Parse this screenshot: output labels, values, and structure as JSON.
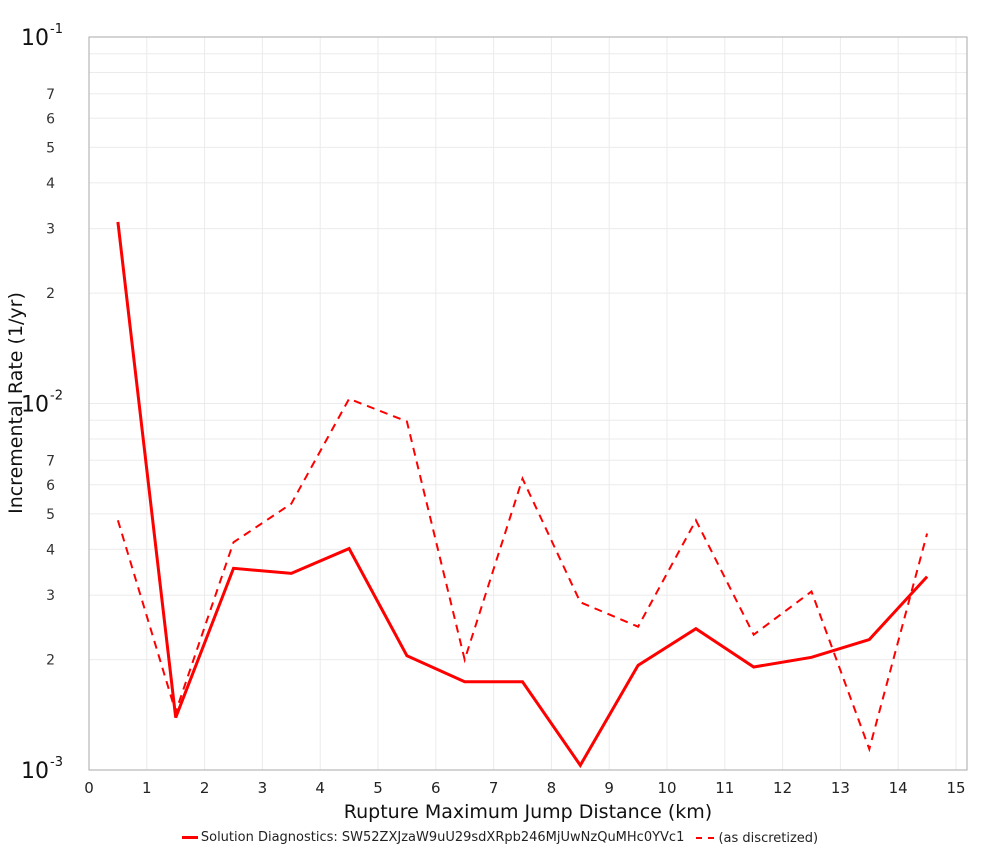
{
  "chart_data": {
    "type": "line",
    "title": "",
    "xlabel": "Rupture Maximum Jump Distance (km)",
    "ylabel": "Incremental Rate (1/yr)",
    "xlim": [
      0,
      15.2
    ],
    "ylim": [
      0.001,
      0.1
    ],
    "yscale": "log",
    "grid": true,
    "legend_position": "bottom",
    "x_ticks": [
      "0",
      "1",
      "2",
      "3",
      "4",
      "5",
      "6",
      "7",
      "8",
      "9",
      "10",
      "11",
      "12",
      "13",
      "14",
      "15"
    ],
    "y_major_ticks": [
      {
        "base": "10",
        "exp": "-1",
        "value": 0.1
      },
      {
        "base": "10",
        "exp": "-2",
        "value": 0.01
      },
      {
        "base": "10",
        "exp": "-3",
        "value": 0.001
      }
    ],
    "y_minor_tick_labels": [
      "2",
      "3",
      "4",
      "5",
      "6",
      "7"
    ],
    "x": [
      0.5,
      1.5,
      2.5,
      3.5,
      4.5,
      5.5,
      6.5,
      7.5,
      8.5,
      9.5,
      10.5,
      11.5,
      12.5,
      13.5,
      14.5
    ],
    "series": [
      {
        "name": "Solution Diagnostics: SW52ZXJzaW9uU29sdXRpb246MjUwNzQuMHc0YVc1",
        "style": "solid",
        "color": "#ff0000",
        "values": [
          0.0313,
          0.00139,
          0.00355,
          0.00344,
          0.00402,
          0.00205,
          0.00174,
          0.00174,
          0.00103,
          0.00193,
          0.00243,
          0.00191,
          0.00203,
          0.00227,
          0.00337
        ]
      },
      {
        "name": "(as discretized)",
        "style": "dashed",
        "color": "#ff0000",
        "values": [
          0.0048,
          0.00144,
          0.00418,
          0.00533,
          0.0103,
          0.00893,
          0.002,
          0.00624,
          0.00287,
          0.00246,
          0.0048,
          0.00234,
          0.00307,
          0.00114,
          0.00442
        ]
      }
    ]
  },
  "legend": {
    "items": [
      {
        "label": "Solution Diagnostics: SW52ZXJzaW9uU29sdXRpb246MjUwNzQuMHc0YVc1",
        "style": "solid"
      },
      {
        "label": "(as discretized)",
        "style": "dashed"
      }
    ]
  }
}
